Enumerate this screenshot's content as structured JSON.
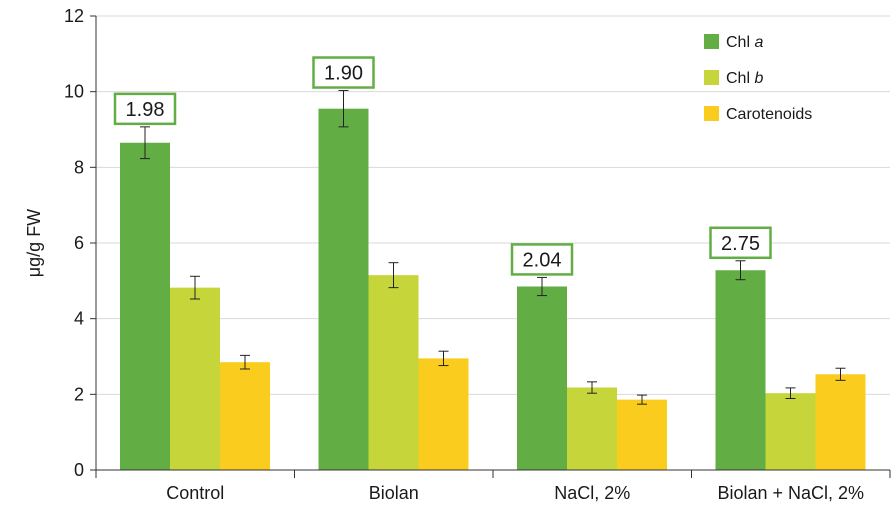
{
  "chart_data": {
    "type": "bar",
    "title": "",
    "xlabel": "",
    "ylabel": "μg/g FW",
    "ylim": [
      0,
      12
    ],
    "yticks": [
      "0",
      "2",
      "4",
      "6",
      "8",
      "10",
      "12"
    ],
    "grid": true,
    "legend_position": "top-right",
    "categories": [
      "Control",
      "Biolan",
      "NaCl, 2%",
      "Biolan + NaCl, 2%"
    ],
    "series": [
      {
        "name": "Chl a",
        "name_prefix": "Chl ",
        "name_italic": "a",
        "color": "#62ae44",
        "values": [
          8.65,
          9.55,
          4.85,
          5.28
        ],
        "errors": [
          0.42,
          0.48,
          0.24,
          0.25
        ]
      },
      {
        "name": "Chl b",
        "name_prefix": "Chl ",
        "name_italic": "b",
        "color": "#c5d53a",
        "values": [
          4.82,
          5.15,
          2.18,
          2.03
        ],
        "errors": [
          0.3,
          0.33,
          0.15,
          0.14
        ]
      },
      {
        "name": "Carotenoids",
        "name_prefix": "Carotenoids",
        "name_italic": "",
        "color": "#f9cc1d",
        "values": [
          2.85,
          2.95,
          1.86,
          2.53
        ],
        "errors": [
          0.18,
          0.19,
          0.12,
          0.16
        ]
      }
    ],
    "annotations": {
      "box_color": "#62ae44",
      "labels": [
        "1.98",
        "1.90",
        "2.04",
        "2.75"
      ]
    }
  }
}
